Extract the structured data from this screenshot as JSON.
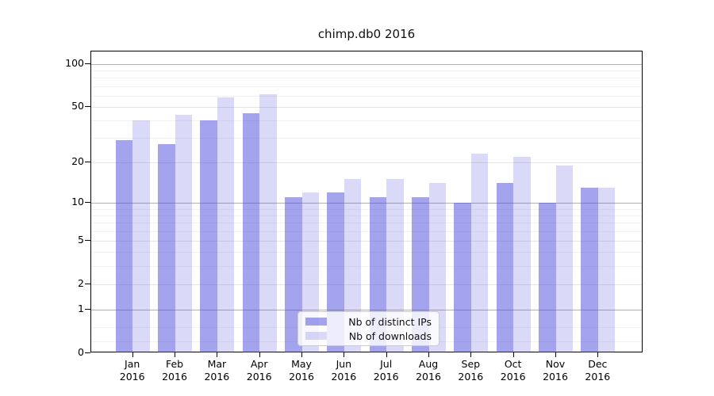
{
  "chart_data": {
    "type": "bar",
    "title": "chimp.db0 2016",
    "categories": [
      "Jan",
      "Feb",
      "Mar",
      "Apr",
      "May",
      "Jun",
      "Jul",
      "Aug",
      "Sep",
      "Oct",
      "Nov",
      "Dec"
    ],
    "year_label": "2016",
    "series": [
      {
        "name": "Nb of distinct IPs",
        "color": "rgba(68,68,221,0.49)",
        "values": [
          29,
          27,
          40,
          45,
          11,
          12,
          11,
          11,
          10,
          14,
          10,
          13
        ]
      },
      {
        "name": "Nb of downloads",
        "color": "rgba(68,68,221,0.20)",
        "values": [
          40,
          44,
          58,
          61,
          12,
          15,
          15,
          14,
          23,
          22,
          19,
          13
        ]
      }
    ],
    "yaxis": {
      "scale": "log10(1+v)",
      "ticks": [
        100,
        50,
        20,
        10,
        5,
        2,
        1,
        0
      ],
      "minor_ticks": [
        0.2,
        0.5,
        3,
        4,
        6,
        7,
        8,
        9,
        30,
        40,
        60,
        70,
        80,
        90
      ],
      "ylim": [
        0,
        121
      ]
    },
    "grid": true,
    "legend_position": "lower-center"
  }
}
